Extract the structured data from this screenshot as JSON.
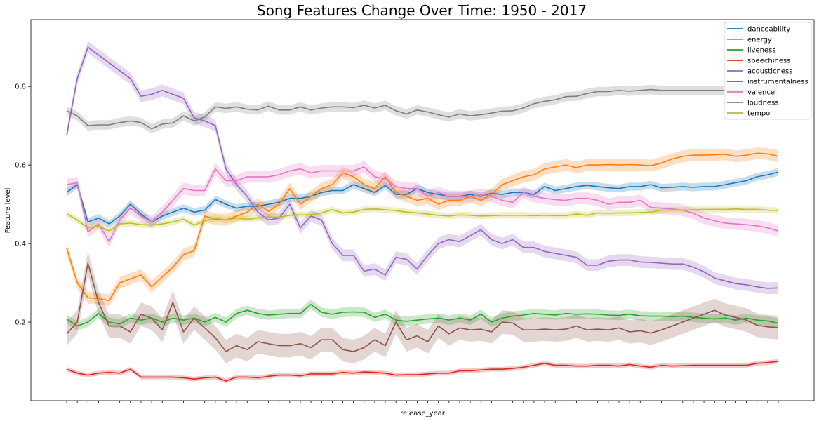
{
  "chart_data": {
    "type": "line",
    "title": "Song Features Change Over Time: 1950 - 2017",
    "xlabel": "release_year",
    "ylabel": "Feature level",
    "x_range": [
      1950,
      2017
    ],
    "x_tick_labels_visible": false,
    "ylim": [
      0.0,
      0.97
    ],
    "yticks": [
      0.2,
      0.4,
      0.6,
      0.8
    ],
    "grid": false,
    "legend_position": "top-right",
    "confidence_bands": true,
    "x": [
      1950,
      1951,
      1952,
      1953,
      1954,
      1955,
      1956,
      1957,
      1958,
      1959,
      1960,
      1961,
      1962,
      1963,
      1964,
      1965,
      1966,
      1967,
      1968,
      1969,
      1970,
      1971,
      1972,
      1973,
      1974,
      1975,
      1976,
      1977,
      1978,
      1979,
      1980,
      1981,
      1982,
      1983,
      1984,
      1985,
      1986,
      1987,
      1988,
      1989,
      1990,
      1991,
      1992,
      1993,
      1994,
      1995,
      1996,
      1997,
      1998,
      1999,
      2000,
      2001,
      2002,
      2003,
      2004,
      2005,
      2006,
      2007,
      2008,
      2009,
      2010,
      2011,
      2012,
      2013,
      2014,
      2015,
      2016,
      2017
    ],
    "series": [
      {
        "name": "danceability",
        "color": "#1f77b4",
        "band": 0.01,
        "values": [
          0.53,
          0.55,
          0.455,
          0.465,
          0.45,
          0.47,
          0.5,
          0.475,
          0.455,
          0.47,
          0.48,
          0.49,
          0.48,
          0.485,
          0.512,
          0.5,
          0.49,
          0.495,
          0.495,
          0.5,
          0.505,
          0.515,
          0.515,
          0.52,
          0.53,
          0.535,
          0.535,
          0.55,
          0.54,
          0.53,
          0.548,
          0.525,
          0.525,
          0.54,
          0.53,
          0.525,
          0.52,
          0.52,
          0.525,
          0.52,
          0.528,
          0.525,
          0.53,
          0.53,
          0.525,
          0.545,
          0.535,
          0.54,
          0.545,
          0.548,
          0.545,
          0.542,
          0.54,
          0.545,
          0.545,
          0.55,
          0.542,
          0.543,
          0.545,
          0.543,
          0.545,
          0.545,
          0.55,
          0.555,
          0.56,
          0.57,
          0.575,
          0.582
        ]
      },
      {
        "name": "energy",
        "color": "#ff7f0e",
        "band": 0.015,
        "values": [
          0.388,
          0.3,
          0.262,
          0.26,
          0.255,
          0.3,
          0.31,
          0.32,
          0.29,
          0.315,
          0.34,
          0.372,
          0.382,
          0.47,
          0.462,
          0.46,
          0.47,
          0.48,
          0.5,
          0.482,
          0.5,
          0.54,
          0.5,
          0.52,
          0.54,
          0.55,
          0.58,
          0.57,
          0.55,
          0.54,
          0.57,
          0.53,
          0.52,
          0.51,
          0.515,
          0.5,
          0.51,
          0.51,
          0.52,
          0.51,
          0.525,
          0.55,
          0.56,
          0.57,
          0.575,
          0.59,
          0.595,
          0.6,
          0.593,
          0.6,
          0.6,
          0.601,
          0.6,
          0.601,
          0.6,
          0.598,
          0.605,
          0.615,
          0.622,
          0.625,
          0.625,
          0.626,
          0.627,
          0.622,
          0.625,
          0.63,
          0.628,
          0.622
        ]
      },
      {
        "name": "liveness",
        "color": "#2ca02c",
        "band": 0.012,
        "values": [
          0.208,
          0.19,
          0.2,
          0.222,
          0.2,
          0.195,
          0.21,
          0.205,
          0.21,
          0.2,
          0.21,
          0.205,
          0.21,
          0.2,
          0.212,
          0.2,
          0.222,
          0.23,
          0.222,
          0.218,
          0.22,
          0.222,
          0.222,
          0.245,
          0.225,
          0.22,
          0.225,
          0.226,
          0.225,
          0.212,
          0.22,
          0.205,
          0.202,
          0.205,
          0.208,
          0.21,
          0.205,
          0.21,
          0.205,
          0.22,
          0.2,
          0.21,
          0.215,
          0.218,
          0.222,
          0.22,
          0.218,
          0.222,
          0.22,
          0.221,
          0.22,
          0.218,
          0.217,
          0.22,
          0.216,
          0.215,
          0.215,
          0.214,
          0.215,
          0.212,
          0.21,
          0.208,
          0.21,
          0.205,
          0.21,
          0.205,
          0.203,
          0.197
        ]
      },
      {
        "name": "speechiness",
        "color": "#d62728",
        "band": 0.006,
        "values": [
          0.08,
          0.07,
          0.065,
          0.07,
          0.072,
          0.07,
          0.08,
          0.06,
          0.06,
          0.06,
          0.06,
          0.058,
          0.055,
          0.058,
          0.06,
          0.05,
          0.06,
          0.06,
          0.058,
          0.062,
          0.065,
          0.065,
          0.063,
          0.068,
          0.068,
          0.068,
          0.072,
          0.07,
          0.073,
          0.072,
          0.07,
          0.065,
          0.066,
          0.066,
          0.068,
          0.07,
          0.07,
          0.076,
          0.076,
          0.078,
          0.08,
          0.08,
          0.082,
          0.085,
          0.09,
          0.095,
          0.09,
          0.09,
          0.088,
          0.088,
          0.09,
          0.09,
          0.088,
          0.092,
          0.088,
          0.085,
          0.09,
          0.088,
          0.089,
          0.09,
          0.09,
          0.09,
          0.09,
          0.09,
          0.09,
          0.095,
          0.097,
          0.1
        ]
      },
      {
        "name": "acousticness",
        "color": "#9467bd",
        "band": 0.015,
        "values": [
          0.676,
          0.82,
          0.9,
          0.88,
          0.86,
          0.84,
          0.82,
          0.775,
          0.78,
          0.79,
          0.78,
          0.77,
          0.72,
          0.712,
          0.7,
          0.59,
          0.55,
          0.52,
          0.48,
          0.46,
          0.465,
          0.5,
          0.44,
          0.47,
          0.46,
          0.4,
          0.37,
          0.37,
          0.33,
          0.335,
          0.32,
          0.365,
          0.36,
          0.335,
          0.37,
          0.4,
          0.41,
          0.405,
          0.42,
          0.435,
          0.41,
          0.4,
          0.41,
          0.39,
          0.39,
          0.38,
          0.375,
          0.37,
          0.365,
          0.345,
          0.345,
          0.355,
          0.358,
          0.358,
          0.353,
          0.352,
          0.35,
          0.348,
          0.348,
          0.34,
          0.328,
          0.312,
          0.305,
          0.298,
          0.295,
          0.29,
          0.286,
          0.287
        ]
      },
      {
        "name": "instrumentalness",
        "color": "#8c564b",
        "band": 0.03,
        "values": [
          0.17,
          0.2,
          0.35,
          0.25,
          0.19,
          0.19,
          0.175,
          0.22,
          0.21,
          0.18,
          0.25,
          0.175,
          0.21,
          0.185,
          0.16,
          0.125,
          0.14,
          0.13,
          0.15,
          0.145,
          0.14,
          0.14,
          0.145,
          0.135,
          0.155,
          0.155,
          0.13,
          0.125,
          0.135,
          0.155,
          0.14,
          0.2,
          0.155,
          0.165,
          0.15,
          0.19,
          0.17,
          0.185,
          0.18,
          0.182,
          0.175,
          0.2,
          0.198,
          0.18,
          0.18,
          0.182,
          0.18,
          0.182,
          0.19,
          0.18,
          0.182,
          0.18,
          0.185,
          0.175,
          0.178,
          0.172,
          0.18,
          0.19,
          0.2,
          0.21,
          0.22,
          0.23,
          0.218,
          0.212,
          0.205,
          0.192,
          0.188,
          0.186
        ]
      },
      {
        "name": "valence",
        "color": "#e377c2",
        "band": 0.015,
        "values": [
          0.55,
          0.555,
          0.43,
          0.45,
          0.405,
          0.46,
          0.49,
          0.47,
          0.455,
          0.48,
          0.51,
          0.54,
          0.535,
          0.535,
          0.59,
          0.56,
          0.56,
          0.57,
          0.57,
          0.57,
          0.575,
          0.585,
          0.59,
          0.58,
          0.585,
          0.585,
          0.585,
          0.585,
          0.595,
          0.57,
          0.565,
          0.545,
          0.54,
          0.54,
          0.52,
          0.53,
          0.52,
          0.52,
          0.52,
          0.525,
          0.52,
          0.51,
          0.505,
          0.53,
          0.52,
          0.515,
          0.512,
          0.51,
          0.515,
          0.515,
          0.51,
          0.5,
          0.505,
          0.505,
          0.51,
          0.492,
          0.49,
          0.488,
          0.485,
          0.477,
          0.465,
          0.458,
          0.452,
          0.45,
          0.448,
          0.445,
          0.44,
          0.432
        ]
      },
      {
        "name": "loudness",
        "color": "#7f7f7f",
        "band": 0.012,
        "values": [
          0.738,
          0.725,
          0.7,
          0.702,
          0.702,
          0.708,
          0.712,
          0.708,
          0.692,
          0.704,
          0.707,
          0.725,
          0.712,
          0.722,
          0.748,
          0.744,
          0.748,
          0.742,
          0.74,
          0.75,
          0.74,
          0.74,
          0.748,
          0.74,
          0.745,
          0.748,
          0.748,
          0.746,
          0.752,
          0.745,
          0.752,
          0.738,
          0.73,
          0.74,
          0.735,
          0.728,
          0.722,
          0.73,
          0.725,
          0.728,
          0.732,
          0.737,
          0.738,
          0.745,
          0.756,
          0.762,
          0.766,
          0.774,
          0.775,
          0.782,
          0.787,
          0.787,
          0.79,
          0.788,
          0.79,
          0.792,
          0.79,
          0.79,
          0.79,
          0.79,
          0.79,
          0.79,
          0.79,
          0.79,
          0.79,
          0.79,
          0.79,
          0.79
        ]
      },
      {
        "name": "tempo",
        "color": "#bcbd22",
        "band": 0.008,
        "values": [
          0.476,
          0.46,
          0.44,
          0.445,
          0.432,
          0.45,
          0.452,
          0.448,
          0.447,
          0.45,
          0.455,
          0.462,
          0.447,
          0.458,
          0.465,
          0.46,
          0.465,
          0.462,
          0.465,
          0.468,
          0.467,
          0.472,
          0.473,
          0.473,
          0.478,
          0.486,
          0.478,
          0.48,
          0.487,
          0.488,
          0.486,
          0.484,
          0.48,
          0.478,
          0.475,
          0.472,
          0.47,
          0.473,
          0.472,
          0.47,
          0.471,
          0.472,
          0.472,
          0.472,
          0.471,
          0.472,
          0.471,
          0.471,
          0.475,
          0.472,
          0.478,
          0.477,
          0.478,
          0.478,
          0.479,
          0.48,
          0.485,
          0.485,
          0.485,
          0.486,
          0.487,
          0.487,
          0.487,
          0.488,
          0.487,
          0.487,
          0.485,
          0.484
        ]
      }
    ]
  }
}
